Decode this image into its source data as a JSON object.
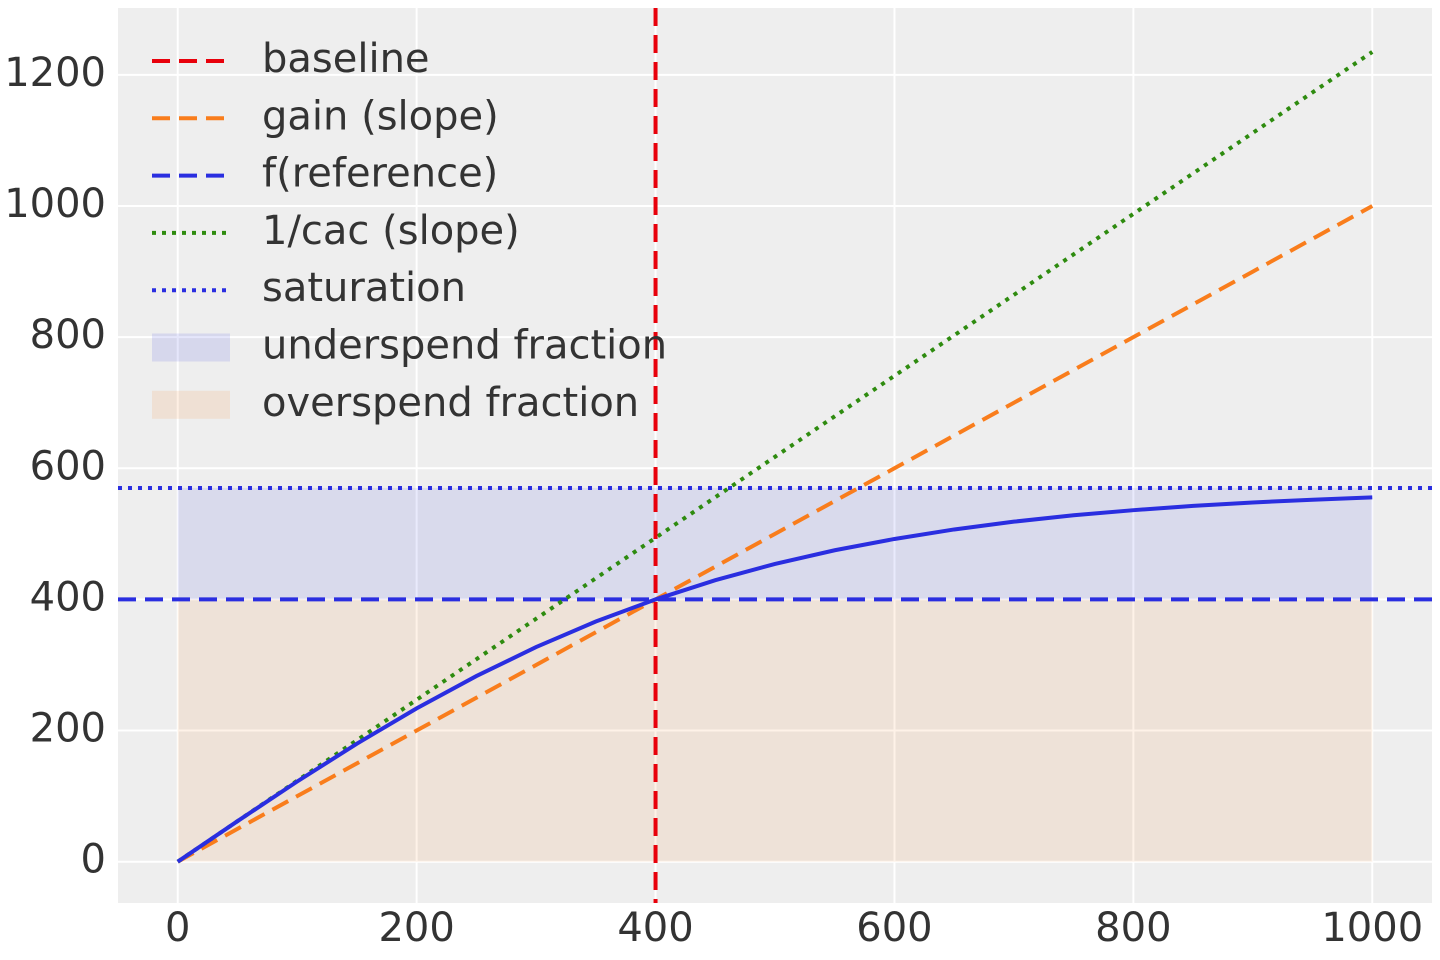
{
  "chart_data": {
    "type": "line",
    "x": [
      0,
      50,
      100,
      150,
      200,
      250,
      300,
      350,
      400,
      450,
      500,
      550,
      600,
      650,
      700,
      750,
      800,
      850,
      900,
      950,
      1000
    ],
    "curve": {
      "color": "#2a2ee0",
      "style": "solid",
      "values": [
        0,
        61.8,
        122.3,
        180.0,
        233.8,
        283.1,
        327.3,
        366.3,
        400,
        429.3,
        454.1,
        475.0,
        492.2,
        506.7,
        518.6,
        528.3,
        536.1,
        542.6,
        547.9,
        552.1,
        555.6
      ]
    },
    "layers": [
      {
        "name": "baseline",
        "kind": "vline",
        "value": 400,
        "color": "#e8000b",
        "style": "dashed"
      },
      {
        "name": "gain (slope)",
        "kind": "line",
        "color": "#f97d1c",
        "style": "dashed",
        "values": [
          0,
          50,
          100,
          150,
          200,
          250,
          300,
          350,
          400,
          450,
          500,
          550,
          600,
          650,
          700,
          750,
          800,
          850,
          900,
          950,
          1000
        ]
      },
      {
        "name": "f(reference)",
        "kind": "hline",
        "value": 400,
        "color": "#2a2ee0",
        "style": "dashed"
      },
      {
        "name": "1/cac (slope)",
        "kind": "line",
        "color": "#2e8b0f",
        "style": "dotted",
        "values": [
          0,
          61.8,
          123.5,
          185.3,
          247,
          308.8,
          370.5,
          432.3,
          494,
          555.8,
          617.5,
          679.3,
          741,
          802.8,
          864.5,
          926.3,
          988,
          1049.8,
          1111.5,
          1173.3,
          1235
        ]
      },
      {
        "name": "saturation",
        "kind": "hline",
        "value": 570,
        "color": "#2a2ee0",
        "style": "dotted"
      },
      {
        "name": "underspend fraction",
        "kind": "area",
        "lower": 400,
        "upper": 570,
        "x_range": [
          0,
          1000
        ],
        "color": "#2a2ee0",
        "opacity": 0.1
      },
      {
        "name": "overspend fraction",
        "kind": "area",
        "lower": 0,
        "upper": 400,
        "x_range": [
          0,
          1000
        ],
        "color": "#f97d1c",
        "opacity": 0.1
      }
    ],
    "xlim": [
      -50,
      1050
    ],
    "ylim": [
      -63,
      1302
    ],
    "xticks": [
      0,
      200,
      400,
      600,
      800,
      1000
    ],
    "yticks": [
      0,
      200,
      400,
      600,
      800,
      1000,
      1200
    ],
    "grid": true,
    "legend": "upper left"
  }
}
